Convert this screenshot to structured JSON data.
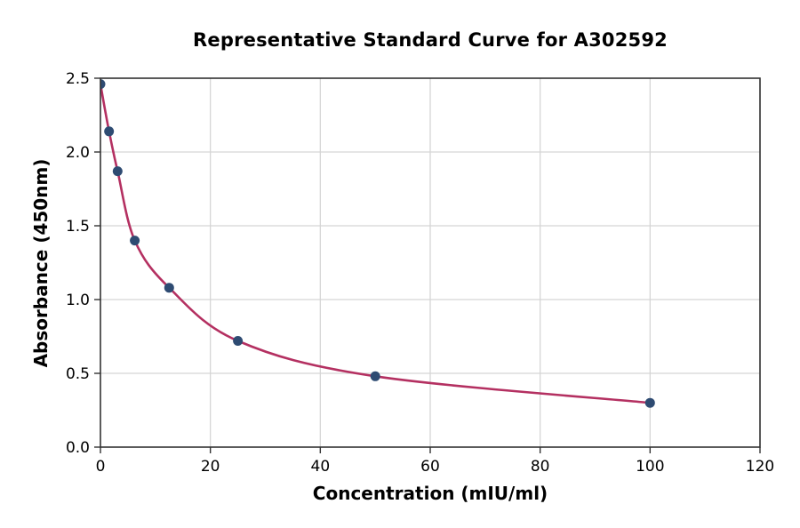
{
  "chart_data": {
    "type": "scatter",
    "title": "Representative Standard Curve for A302592",
    "xlabel": "Concentration (mIU/ml)",
    "ylabel": "Absorbance (450nm)",
    "xlim": [
      0,
      120
    ],
    "ylim": [
      0,
      2.5
    ],
    "x_ticks": [
      "0",
      "20",
      "40",
      "60",
      "80",
      "100",
      "120"
    ],
    "y_ticks": [
      "0.0",
      "0.5",
      "1.0",
      "1.5",
      "2.0",
      "2.5"
    ],
    "grid": true,
    "legend": "none",
    "series": [
      {
        "name": "standards",
        "marker": "circle",
        "points": [
          {
            "x": 0,
            "y": 2.46
          },
          {
            "x": 1.5625,
            "y": 2.14
          },
          {
            "x": 3.125,
            "y": 1.87
          },
          {
            "x": 6.25,
            "y": 1.4
          },
          {
            "x": 12.5,
            "y": 1.08
          },
          {
            "x": 25,
            "y": 0.72
          },
          {
            "x": 50,
            "y": 0.48
          },
          {
            "x": 100,
            "y": 0.3
          }
        ]
      }
    ],
    "fit_curve": {
      "style": "smooth dose-response fit through standard points",
      "x_start": 0,
      "x_end": 100
    },
    "colors": {
      "point": "#2e4b72",
      "curve": "#b43061",
      "grid": "#d5d5d5",
      "spine": "#333333",
      "tick": "#333333",
      "text": "#000000",
      "background": "#ffffff"
    }
  }
}
